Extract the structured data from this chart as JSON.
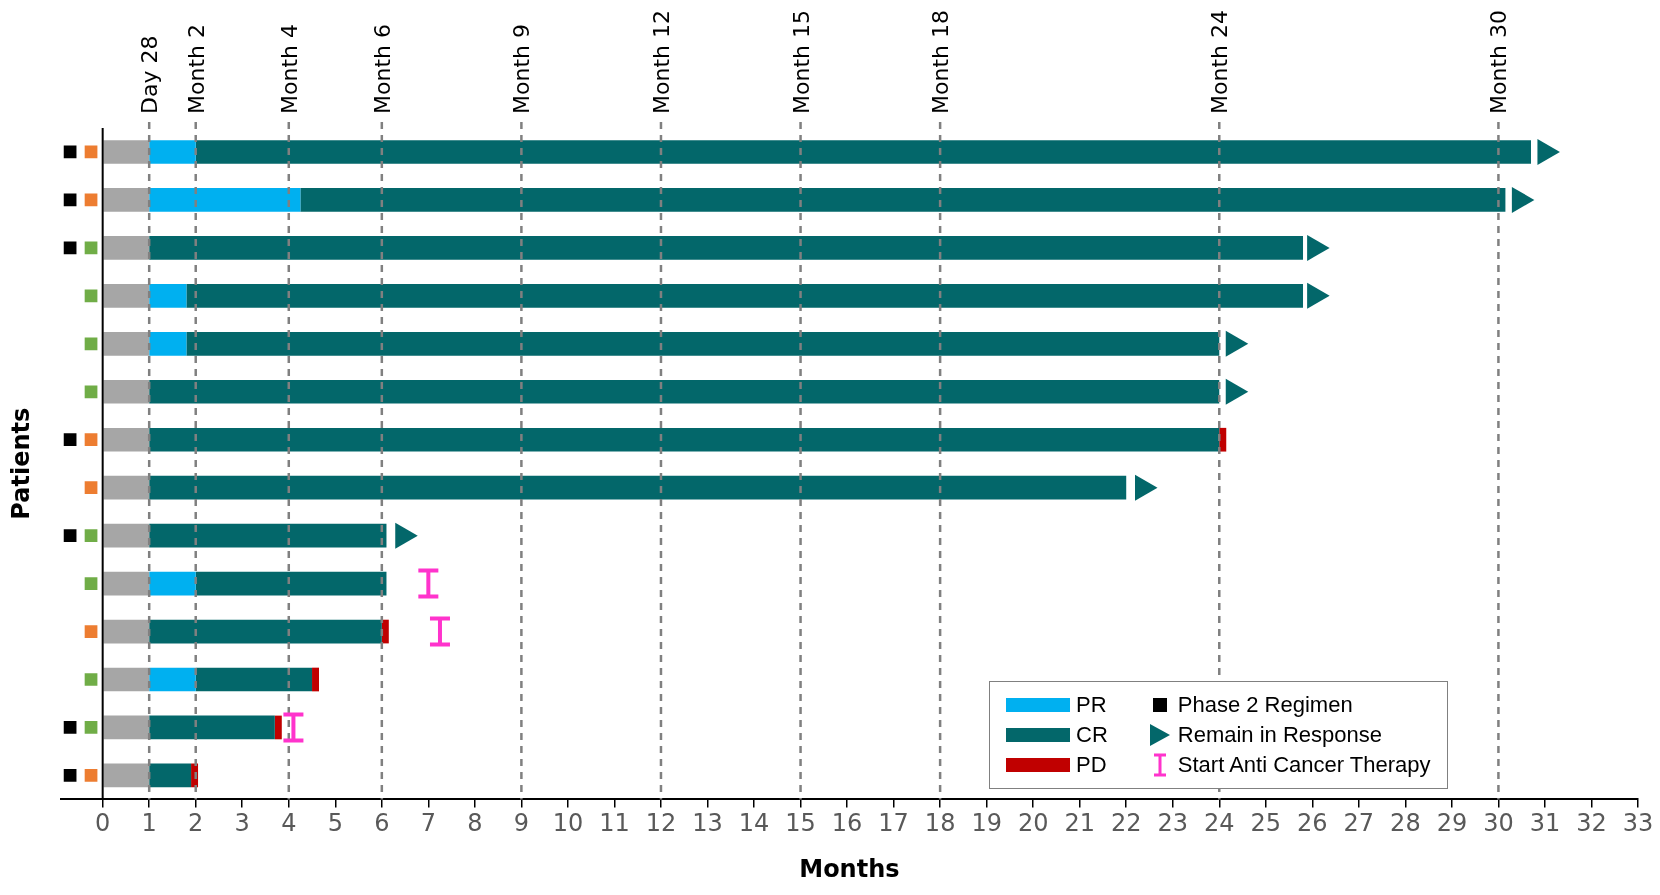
{
  "chart_data": {
    "type": "bar",
    "orientation": "horizontal",
    "stacked": true,
    "xlabel": "Months",
    "ylabel": "Patients",
    "categories": [
      null,
      null,
      null,
      null,
      null,
      null,
      null,
      null,
      null,
      null,
      null,
      null,
      null,
      null
    ],
    "xlim": [
      -0.9,
      33
    ],
    "xticks": [
      0,
      1,
      2,
      3,
      4,
      5,
      6,
      7,
      8,
      9,
      10,
      11,
      12,
      13,
      14,
      15,
      16,
      17,
      18,
      19,
      20,
      21,
      22,
      23,
      24,
      25,
      26,
      27,
      28,
      29,
      30,
      31,
      32,
      33
    ],
    "grid": false,
    "legend": "bottom right",
    "ref_lines": [
      {
        "axis": "x",
        "value": 1,
        "label": "Day 28",
        "color": "#808080",
        "line_style": "dashed"
      },
      {
        "axis": "x",
        "value": 2,
        "label": "Month 2",
        "color": "#808080",
        "line_style": "dashed"
      },
      {
        "axis": "x",
        "value": 4,
        "label": "Month 4",
        "color": "#808080",
        "line_style": "dashed"
      },
      {
        "axis": "x",
        "value": 6,
        "label": "Month 6",
        "color": "#808080",
        "line_style": "dashed"
      },
      {
        "axis": "x",
        "value": 9,
        "label": "Month 9",
        "color": "#808080",
        "line_style": "dashed"
      },
      {
        "axis": "x",
        "value": 12,
        "label": "Month 12",
        "color": "#808080",
        "line_style": "dashed"
      },
      {
        "axis": "x",
        "value": 15,
        "label": "Month 15",
        "color": "#808080",
        "line_style": "dashed"
      },
      {
        "axis": "x",
        "value": 18,
        "label": "Month 18",
        "color": "#808080",
        "line_style": "dashed"
      },
      {
        "axis": "x",
        "value": 24,
        "label": "Month 24",
        "color": "#808080",
        "line_style": "dashed"
      },
      {
        "axis": "x",
        "value": 30,
        "label": "Month 30",
        "color": "#808080",
        "line_style": "dashed"
      }
    ],
    "series": [
      {
        "color": "#a6a6a6",
        "values": [
          1,
          1,
          1,
          1,
          1,
          1,
          1,
          1,
          1,
          1,
          1,
          1,
          1,
          1
        ]
      },
      {
        "name": "PR",
        "color": "#00b0f0",
        "values": [
          1,
          3.25,
          null,
          0.8,
          0.8,
          null,
          null,
          null,
          null,
          1,
          null,
          1,
          null,
          null
        ]
      },
      {
        "name": "CR",
        "color": "#03676a",
        "values": [
          28.7,
          25.9,
          24.8,
          24.0,
          22.2,
          23.0,
          23.0,
          21.0,
          5.1,
          4.1,
          5.0,
          2.5,
          2.7,
          0.9
        ]
      },
      {
        "name": "PD",
        "color": "#c00000",
        "values": [
          null,
          null,
          null,
          null,
          null,
          null,
          0.15,
          null,
          null,
          null,
          0.15,
          0.15,
          0.15,
          0.15
        ]
      },
      {
        "type": "scatter",
        "color": "#ed7d31",
        "marker": "square",
        "values": [
          -0.25,
          -0.25,
          null,
          null,
          null,
          null,
          -0.25,
          -0.25,
          null,
          null,
          -0.25,
          null,
          null,
          -0.25
        ]
      },
      {
        "type": "scatter",
        "color": "#70ad47",
        "marker": "square",
        "values": [
          null,
          null,
          -0.25,
          -0.25,
          -0.25,
          -0.25,
          null,
          null,
          -0.25,
          -0.25,
          null,
          -0.25,
          -0.25,
          null
        ]
      },
      {
        "type": "scatter",
        "name": "Phase 2 Regimen",
        "color": "#000000",
        "marker": "square",
        "values": [
          -0.7,
          -0.7,
          -0.7,
          null,
          null,
          null,
          -0.7,
          null,
          -0.7,
          null,
          null,
          null,
          -0.7,
          -0.7
        ]
      },
      {
        "type": "scatter",
        "name": "Remain in Response",
        "color": "#03676a",
        "marker": "triangle",
        "values": [
          31.0,
          30.45,
          26.05,
          26.05,
          24.3,
          24.3,
          null,
          22.35,
          6.45,
          null,
          null,
          null,
          null,
          null
        ]
      },
      {
        "type": "scatter",
        "name": "Start Anti Cancer Therapy",
        "color": "#ff33cc",
        "values": [
          null,
          null,
          null,
          null,
          null,
          null,
          null,
          null,
          null,
          7.0,
          7.25,
          null,
          4.1,
          null
        ]
      }
    ]
  }
}
